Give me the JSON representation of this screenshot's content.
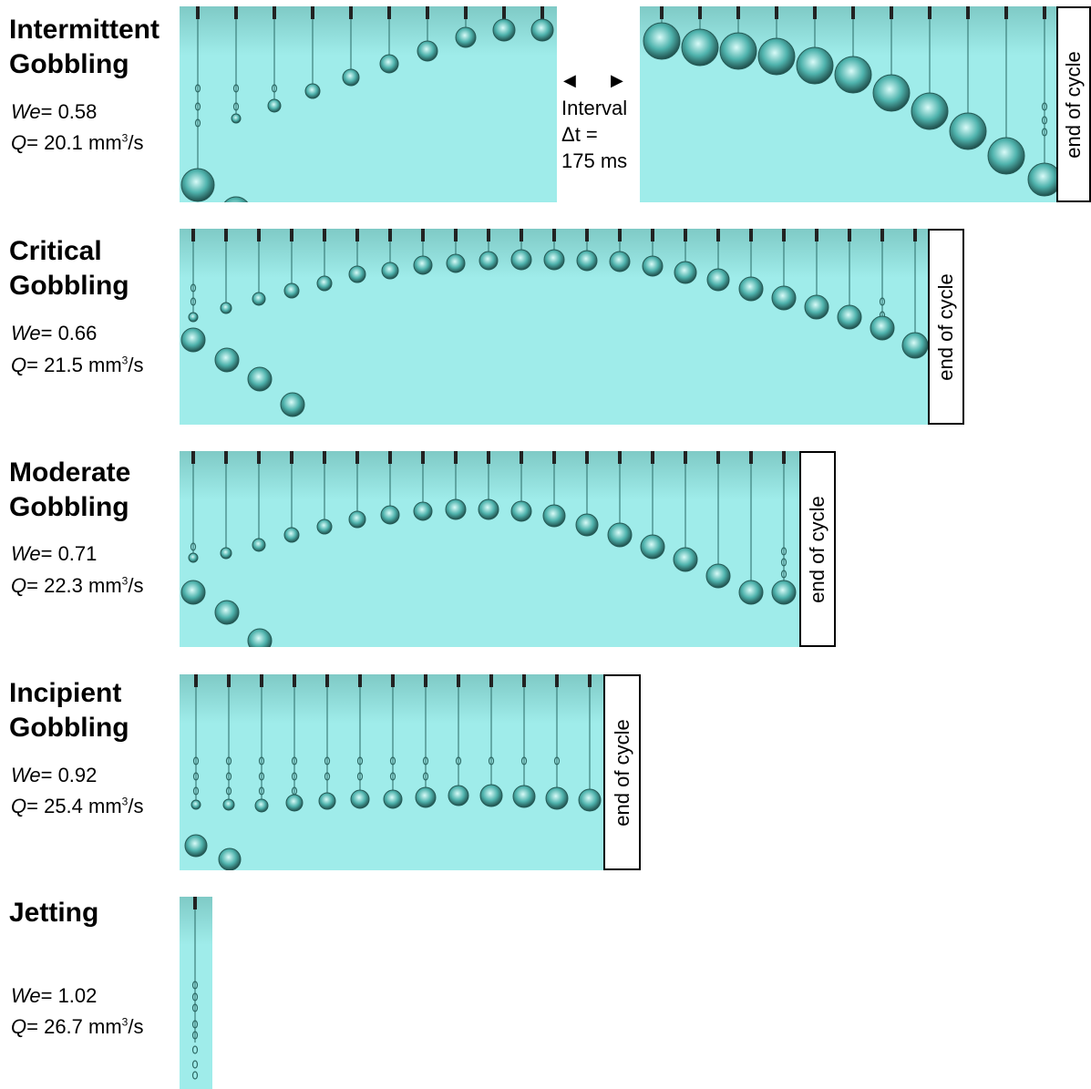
{
  "interval": {
    "label": "Interval",
    "delta": "Δt =",
    "value": "175 ms",
    "left_arrow_icon": "left-triangle-icon",
    "right_arrow_icon": "right-triangle-icon"
  },
  "end_label": "end of cycle",
  "colors": {
    "background": "#9fecea",
    "drop": "#4fb3ad",
    "needle": "#222222"
  },
  "regimes": [
    {
      "title_line1": "Intermittent",
      "title_line2": "Gobbling",
      "we_symbol": "We",
      "we_value": "= 0.58",
      "q_symbol": "Q",
      "q_value": "= 20.1 mm",
      "q_exp": "3",
      "q_unit": "/s"
    },
    {
      "title_line1": "Critical",
      "title_line2": "Gobbling",
      "we_symbol": "We",
      "we_value": "= 0.66",
      "q_symbol": "Q",
      "q_value": "= 21.5 mm",
      "q_exp": "3",
      "q_unit": "/s"
    },
    {
      "title_line1": "Moderate",
      "title_line2": "Gobbling",
      "we_symbol": "We",
      "we_value": "= 0.71",
      "q_symbol": "Q",
      "q_value": "= 22.3 mm",
      "q_exp": "3",
      "q_unit": "/s"
    },
    {
      "title_line1": "Incipient",
      "title_line2": "Gobbling",
      "we_symbol": "We",
      "we_value": "= 0.92",
      "q_symbol": "Q",
      "q_value": "= 25.4 mm",
      "q_exp": "3",
      "q_unit": "/s"
    },
    {
      "title_line1": "Jetting",
      "title_line2": "",
      "we_symbol": "We",
      "we_value": "= 1.02",
      "q_symbol": "Q",
      "q_value": "= 26.7 mm",
      "q_exp": "3",
      "q_unit": "/s"
    }
  ]
}
